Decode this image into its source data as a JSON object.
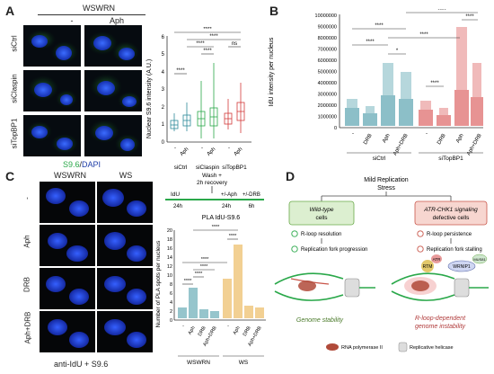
{
  "panelA": {
    "letter": "A",
    "header": "WSWRN",
    "columns": [
      "-",
      "Aph"
    ],
    "rows": [
      "siCtrl",
      "siClaspin",
      "siTopBP1"
    ],
    "stain_s96": "S9.6",
    "stain_sep": "/",
    "stain_dapi": "DAPI",
    "chart": {
      "ylabel": "Nuclear S9.6 intensity (A.U.)",
      "yticks": [
        "0",
        "1",
        "2",
        "3",
        "4",
        "5",
        "6"
      ],
      "categories": [
        "-",
        "Aph",
        "-",
        "Aph",
        "-",
        "Aph"
      ],
      "groups": [
        "siCtrl",
        "siClaspin",
        "siTopBP1"
      ],
      "sig": [
        "****",
        "****",
        "****",
        "ns",
        "****",
        "****"
      ]
    }
  },
  "panelB": {
    "letter": "B",
    "ylabel": "IdU intensity per nucleus",
    "yticks": [
      "0",
      "1000000",
      "2000000",
      "3000000",
      "4000000",
      "5000000",
      "6000000",
      "7000000",
      "8000000",
      "9000000",
      "10000000"
    ],
    "categories": [
      "-",
      "DRB",
      "Aph",
      "Aph+DRB",
      "-",
      "DRB",
      "Aph",
      "Aph+DRB"
    ],
    "groups": [
      "siCtrl",
      "siTopBP1"
    ],
    "sig": [
      "****",
      "****",
      "*",
      "****",
      "****",
      "****",
      "****"
    ]
  },
  "panelC": {
    "letter": "C",
    "col_headers": [
      "WSWRN",
      "WS"
    ],
    "rows": [
      "-",
      "Aph",
      "DRB",
      "Aph+DRB"
    ],
    "caption": "anti-IdU + S9.6",
    "scheme": {
      "idu": "IdU",
      "wash": "Wash +",
      "recovery": "2h recovery",
      "aph": "+/-Aph",
      "drb": "+/-DRB",
      "t1": "24h",
      "t2": "24h",
      "t3": "6h"
    },
    "chart": {
      "title": "PLA IdU-S9.6",
      "ylabel": "Number of PLA spots per nucleus",
      "yticks": [
        "0",
        "2",
        "4",
        "6",
        "8",
        "10",
        "12",
        "14",
        "16",
        "18",
        "20"
      ],
      "categories": [
        "-",
        "Aph",
        "DRB",
        "Aph+DRB",
        "-",
        "Aph",
        "DRB",
        "Aph+DRB"
      ],
      "groups": [
        "WSWRN",
        "WS"
      ],
      "sig": [
        "****",
        "****",
        "****",
        "****",
        "****",
        "****"
      ]
    }
  },
  "panelD": {
    "letter": "D",
    "top": "Mild Replication",
    "top2": "Stress",
    "left_box1": "Wild-type",
    "left_box2": "cells",
    "right_box1": "ATR-CHK1 signaling",
    "right_box2": "defective cells",
    "left_items": [
      "R-loop resolution",
      "Replication fork progression"
    ],
    "right_items": [
      "R-loop persistence",
      "Replication fork stalling"
    ],
    "proteins": {
      "rtm": "RTM",
      "atr": "ATR",
      "wrnip1": "WRNIP1",
      "mus81": "MUS81"
    },
    "left_outcome": "Genome stability",
    "right_outcome1": "R-loop-dependent",
    "right_outcome2": "genome instability",
    "legend_rnap": "RNA polymerase II",
    "legend_helicase": "Replicative helicase"
  },
  "colors": {
    "green": "#2aa84a",
    "blue": "#1f3ea8",
    "red": "#d33a3a",
    "teal": "#2e8b9a"
  }
}
